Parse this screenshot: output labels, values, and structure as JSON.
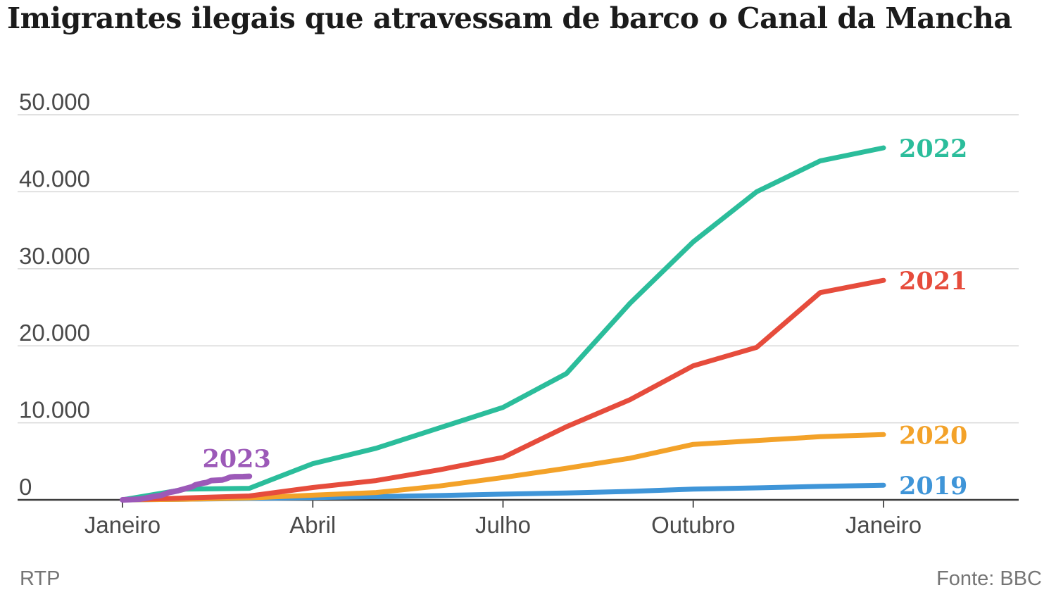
{
  "title": "Imigrantes ilegais que atravessam de barco o Canal da Mancha",
  "footer": {
    "left": "RTP",
    "right": "Fonte: BBC"
  },
  "chart_data": {
    "type": "line",
    "title": "Imigrantes ilegais que atravessam de barco o Canal da Mancha",
    "xlabel": "",
    "ylabel": "",
    "grid": true,
    "legend_position": "end-of-line-labels",
    "xlim_months": [
      0,
      12
    ],
    "ylim": [
      0,
      50000
    ],
    "y_ticks": [
      0,
      10000,
      20000,
      30000,
      40000,
      50000
    ],
    "y_tick_labels": [
      "0",
      "10.000",
      "20.000",
      "30.000",
      "40.000",
      "50.000"
    ],
    "x_tick_months": [
      0,
      3,
      6,
      9,
      12
    ],
    "x_tick_labels": [
      "Janeiro",
      "Abril",
      "Julho",
      "Outubro",
      "Janeiro"
    ],
    "series": [
      {
        "name": "2019",
        "color": "#3f95d8",
        "label_placement": "right",
        "x": [
          0,
          1,
          2,
          3,
          4,
          5,
          6,
          7,
          8,
          9,
          10,
          11,
          12
        ],
        "values": [
          0,
          80,
          180,
          300,
          420,
          560,
          740,
          900,
          1100,
          1400,
          1550,
          1750,
          1900
        ]
      },
      {
        "name": "2020",
        "color": "#f3a229",
        "label_placement": "right",
        "x": [
          0,
          1,
          2,
          3,
          4,
          5,
          6,
          7,
          8,
          9,
          10,
          11,
          12
        ],
        "values": [
          0,
          80,
          250,
          600,
          950,
          1800,
          2900,
          4100,
          5400,
          7200,
          7700,
          8200,
          8470
        ]
      },
      {
        "name": "2021",
        "color": "#e64c3c",
        "label_placement": "right",
        "x": [
          0,
          1,
          2,
          3,
          4,
          5,
          6,
          7,
          8,
          9,
          10,
          11,
          12
        ],
        "values": [
          0,
          250,
          500,
          1600,
          2500,
          3900,
          5500,
          9500,
          13000,
          17400,
          19800,
          26900,
          28500
        ]
      },
      {
        "name": "2022",
        "color": "#2bbd9b",
        "label_placement": "right",
        "x": [
          0,
          1,
          2,
          3,
          4,
          5,
          6,
          7,
          8,
          9,
          10,
          11,
          12
        ],
        "values": [
          0,
          1400,
          1500,
          4700,
          6700,
          9350,
          12000,
          16400,
          25500,
          33500,
          40000,
          44000,
          45700
        ]
      },
      {
        "name": "2023",
        "color": "#9c59b8",
        "label_placement": "above-end",
        "x": [
          0,
          0.13,
          0.27,
          0.33,
          0.4,
          0.47,
          0.53,
          0.6,
          0.67,
          0.73,
          0.8,
          0.87,
          0.93,
          1.0,
          1.1,
          1.15,
          1.2,
          1.27,
          1.33,
          1.4,
          1.47,
          1.57,
          1.63,
          1.7,
          1.77,
          1.9,
          2.0
        ],
        "values": [
          0,
          40,
          90,
          160,
          280,
          400,
          480,
          560,
          760,
          950,
          1060,
          1180,
          1320,
          1480,
          1700,
          1950,
          2050,
          2180,
          2260,
          2500,
          2540,
          2580,
          2720,
          2950,
          3010,
          3020,
          3050
        ]
      }
    ],
    "style": {
      "grid_color": "#d7d7d7",
      "axis_color": "#3d3d3d",
      "tick_color": "#555555",
      "tick_label_color": "#4a4a4a",
      "line_width": 7
    }
  }
}
